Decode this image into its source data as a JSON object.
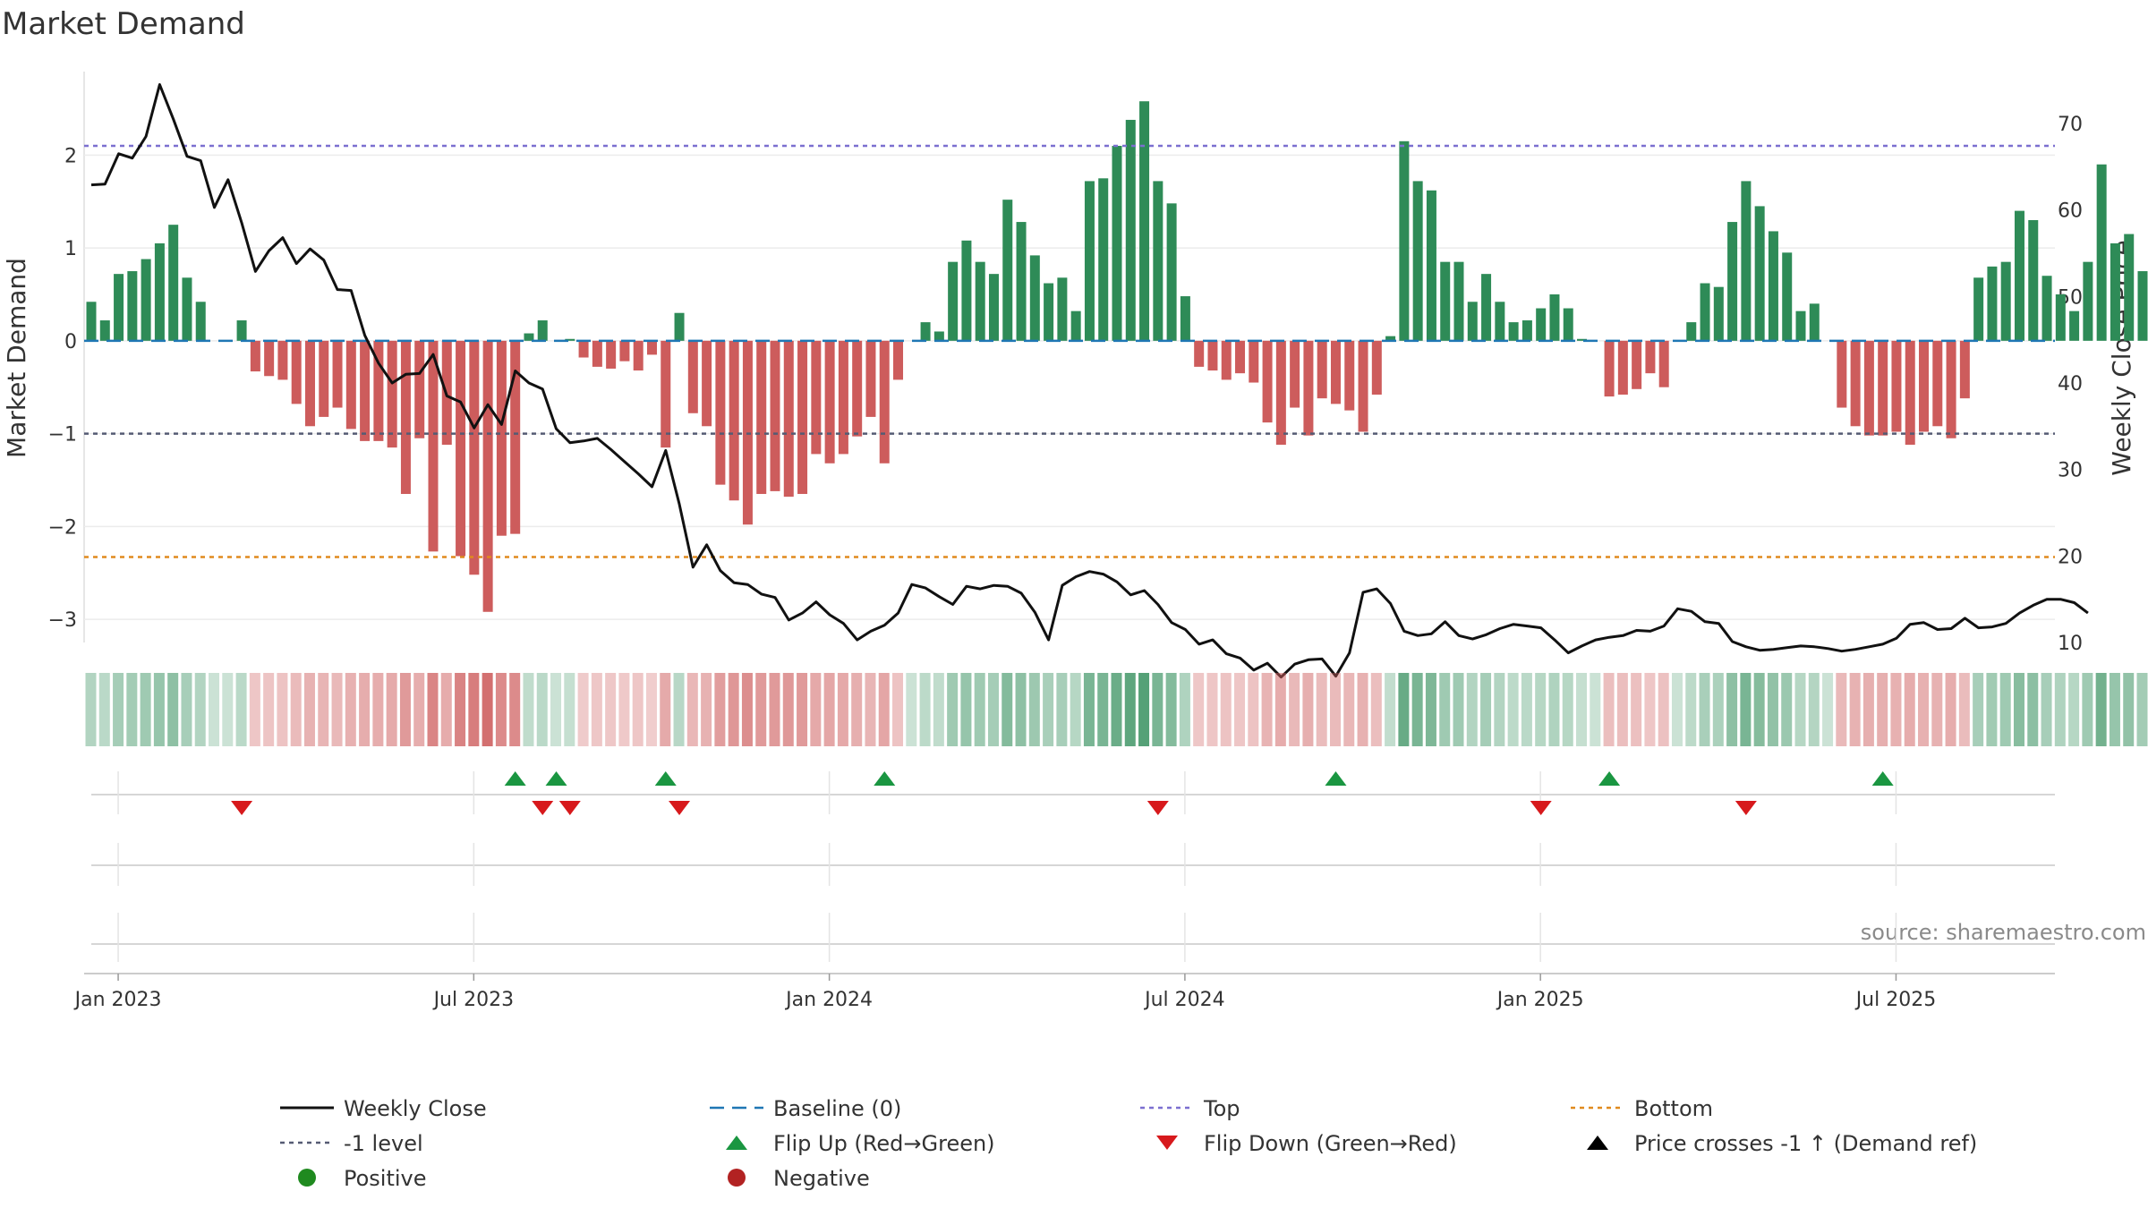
{
  "chart_data": {
    "type": "bar",
    "title": "Market Demand",
    "ylabel": "Market Demand",
    "y2label": "Weekly Close Price",
    "ylim": [
      -3.25,
      2.9
    ],
    "y2lim": [
      10,
      76
    ],
    "yticks": [
      2,
      1,
      0,
      -1,
      -2,
      -3
    ],
    "ytick_labels": [
      "2",
      "1",
      "0",
      "−1",
      "−2",
      "−3"
    ],
    "y2ticks": [
      70,
      60,
      50,
      40,
      30,
      20,
      10
    ],
    "y2tick_labels": [
      "70",
      "60",
      "50",
      "40",
      "30",
      "20",
      "10"
    ],
    "xticks": [
      {
        "index": 2,
        "label": "Jan 2023"
      },
      {
        "index": 28,
        "label": "Jul 2023"
      },
      {
        "index": 54,
        "label": "Jan 2024"
      },
      {
        "index": 80,
        "label": "Jul 2024"
      },
      {
        "index": 106,
        "label": "Jan 2025"
      },
      {
        "index": 132,
        "label": "Jul 2025"
      }
    ],
    "reference_lines": {
      "top": 2.1,
      "bottom": -2.33,
      "minus_one": -1,
      "baseline": 0
    },
    "colors": {
      "positive": "#2e8b57",
      "negative": "#cd5c5c",
      "close": "#111111",
      "baseline": "#1f77b4",
      "top": "#7b6fd0",
      "bottom": "#e08a1e",
      "minus_one": "#555b73",
      "flip_up": "#1a9641",
      "flip_down": "#d7191c",
      "positive_dot": "#1f8a1f",
      "negative_dot": "#b22222"
    },
    "demand": [
      0.42,
      0.22,
      0.72,
      0.75,
      0.88,
      1.05,
      1.25,
      0.68,
      0.42,
      0.0,
      0.0,
      0.22,
      -0.33,
      -0.38,
      -0.42,
      -0.68,
      -0.92,
      -0.82,
      -0.72,
      -0.95,
      -1.08,
      -1.08,
      -1.15,
      -1.65,
      -1.05,
      -2.27,
      -1.12,
      -2.32,
      -2.52,
      -2.92,
      -2.1,
      -2.08,
      0.08,
      0.22,
      0.0,
      0.02,
      -0.18,
      -0.28,
      -0.3,
      -0.22,
      -0.32,
      -0.15,
      -1.15,
      0.3,
      -0.78,
      -0.92,
      -1.55,
      -1.72,
      -1.98,
      -1.65,
      -1.62,
      -1.68,
      -1.65,
      -1.22,
      -1.32,
      -1.22,
      -1.03,
      -0.82,
      -1.32,
      -0.42,
      0.0,
      0.2,
      0.1,
      0.85,
      1.08,
      0.85,
      0.72,
      1.52,
      1.28,
      0.92,
      0.62,
      0.68,
      0.32,
      1.72,
      1.75,
      2.1,
      2.38,
      2.58,
      1.72,
      1.48,
      0.48,
      -0.28,
      -0.32,
      -0.42,
      -0.35,
      -0.45,
      -0.88,
      -1.12,
      -0.72,
      -1.02,
      -0.62,
      -0.68,
      -0.75,
      -0.98,
      -0.58,
      0.05,
      2.15,
      1.72,
      1.62,
      0.85,
      0.85,
      0.42,
      0.72,
      0.42,
      0.2,
      0.22,
      0.35,
      0.5,
      0.35,
      0.02,
      0.0,
      -0.6,
      -0.58,
      -0.52,
      -0.35,
      -0.5,
      0.0,
      0.2,
      0.62,
      0.58,
      1.28,
      1.72,
      1.45,
      1.18,
      0.95,
      0.32,
      0.4,
      0.0,
      -0.72,
      -0.92,
      -1.02,
      -1.02,
      -0.98,
      -1.12,
      -0.98,
      -0.92,
      -1.05,
      -0.62,
      0.68,
      0.8,
      0.85,
      1.4,
      1.3,
      0.7,
      0.5,
      0.32,
      0.85,
      1.9,
      1.05,
      1.15,
      0.75
    ],
    "close": [
      62.9,
      63.0,
      66.5,
      66.0,
      68.5,
      74.5,
      70.5,
      66.2,
      65.7,
      60.3,
      63.5,
      58.5,
      52.9,
      55.3,
      56.8,
      53.8,
      55.5,
      54.2,
      50.8,
      50.7,
      45.5,
      42.3,
      40.0,
      41.0,
      41.1,
      43.3,
      38.5,
      37.8,
      34.8,
      37.5,
      35.2,
      41.4,
      40.0,
      39.3,
      34.7,
      33.1,
      33.3,
      33.6,
      32.3,
      30.9,
      29.5,
      28.0,
      32.2,
      26.0,
      18.7,
      21.3,
      18.3,
      16.9,
      16.7,
      15.6,
      15.2,
      12.6,
      13.4,
      14.7,
      13.2,
      12.2,
      10.3,
      11.3,
      12.0,
      13.4,
      16.7,
      16.3,
      15.3,
      14.4,
      16.5,
      16.2,
      16.6,
      16.5,
      15.7,
      13.5,
      10.3,
      16.6,
      17.6,
      18.2,
      17.9,
      17.0,
      15.5,
      16.0,
      14.4,
      12.3,
      11.5,
      9.8,
      10.3,
      8.7,
      8.2,
      6.8,
      7.6,
      6.0,
      7.5,
      8.0,
      8.1,
      6.1,
      8.8,
      15.8,
      16.2,
      14.5,
      11.3,
      10.8,
      11.0,
      12.4,
      10.8,
      10.4,
      10.9,
      11.6,
      12.1,
      11.9,
      11.7,
      10.3,
      8.8,
      9.6,
      10.3,
      10.6,
      10.8,
      11.4,
      11.3,
      11.9,
      13.9,
      13.6,
      12.4,
      12.2,
      10.1,
      9.5,
      9.1,
      9.2,
      9.4,
      9.6,
      9.5,
      9.3,
      9.0,
      9.2,
      9.5,
      9.8,
      10.5,
      12.1,
      12.3,
      11.5,
      11.6,
      12.8,
      11.7,
      11.8,
      12.2,
      13.4,
      14.3,
      15.0,
      15.0,
      14.6,
      13.4
    ],
    "flip_up_weeks": [
      31,
      34,
      42,
      58,
      91,
      111,
      131
    ],
    "flip_down_weeks": [
      11,
      33,
      35,
      43,
      78,
      106,
      121
    ],
    "source": "source: sharemaestro.com",
    "legend": [
      {
        "label": "Weekly Close",
        "marker": "solid-line",
        "color": "#111111"
      },
      {
        "label": "Baseline (0)",
        "marker": "dashed-line",
        "color": "#1f77b4"
      },
      {
        "label": "Top",
        "marker": "dotted-line",
        "color": "#7b6fd0"
      },
      {
        "label": "Bottom",
        "marker": "dotted-line",
        "color": "#e08a1e"
      },
      {
        "label": "-1 level",
        "marker": "dotted-line",
        "color": "#555b73"
      },
      {
        "label": "Flip Up (Red→Green)",
        "marker": "triangle-up",
        "color": "#1a9641"
      },
      {
        "label": "Flip Down (Green→Red)",
        "marker": "triangle-down",
        "color": "#d7191c"
      },
      {
        "label": "Price crosses -1 ↑ (Demand ref)",
        "marker": "triangle-up",
        "color": "#000000"
      },
      {
        "label": "Positive",
        "marker": "circle",
        "color": "#1f8a1f"
      },
      {
        "label": "Negative",
        "marker": "circle",
        "color": "#b22222"
      }
    ]
  }
}
